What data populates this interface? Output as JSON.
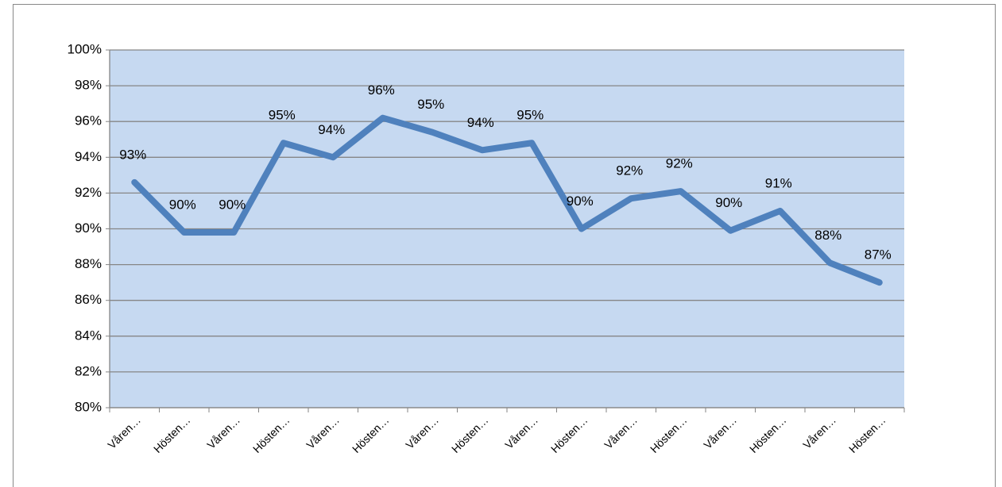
{
  "chart_data": {
    "type": "line",
    "categories": [
      "Våren…",
      "Hösten…",
      "Våren…",
      "Hösten…",
      "Våren…",
      "Hösten…",
      "Våren…",
      "Hösten…",
      "Våren…",
      "Hösten…",
      "Våren…",
      "Hösten…",
      "Våren…",
      "Hösten…",
      "Våren…",
      "Hösten…"
    ],
    "values": [
      92.6,
      89.8,
      89.8,
      94.8,
      94.0,
      96.2,
      95.4,
      94.4,
      94.8,
      90.0,
      91.7,
      92.1,
      89.9,
      91.0,
      88.1,
      87.0
    ],
    "value_labels": [
      "93%",
      "90%",
      "90%",
      "95%",
      "94%",
      "96%",
      "95%",
      "94%",
      "95%",
      "90%",
      "92%",
      "92%",
      "90%",
      "91%",
      "88%",
      "87%"
    ],
    "color": "#4f81bd",
    "ylim": [
      80,
      100
    ],
    "yticks": [
      {
        "value": 80,
        "label": "80%"
      },
      {
        "value": 82,
        "label": "82%"
      },
      {
        "value": 84,
        "label": "84%"
      },
      {
        "value": 86,
        "label": "86%"
      },
      {
        "value": 88,
        "label": "88%"
      },
      {
        "value": 90,
        "label": "90%"
      },
      {
        "value": 92,
        "label": "92%"
      },
      {
        "value": 94,
        "label": "94%"
      },
      {
        "value": 96,
        "label": "96%"
      },
      {
        "value": 98,
        "label": "98%"
      },
      {
        "value": 100,
        "label": "100%"
      }
    ],
    "grid": true
  }
}
